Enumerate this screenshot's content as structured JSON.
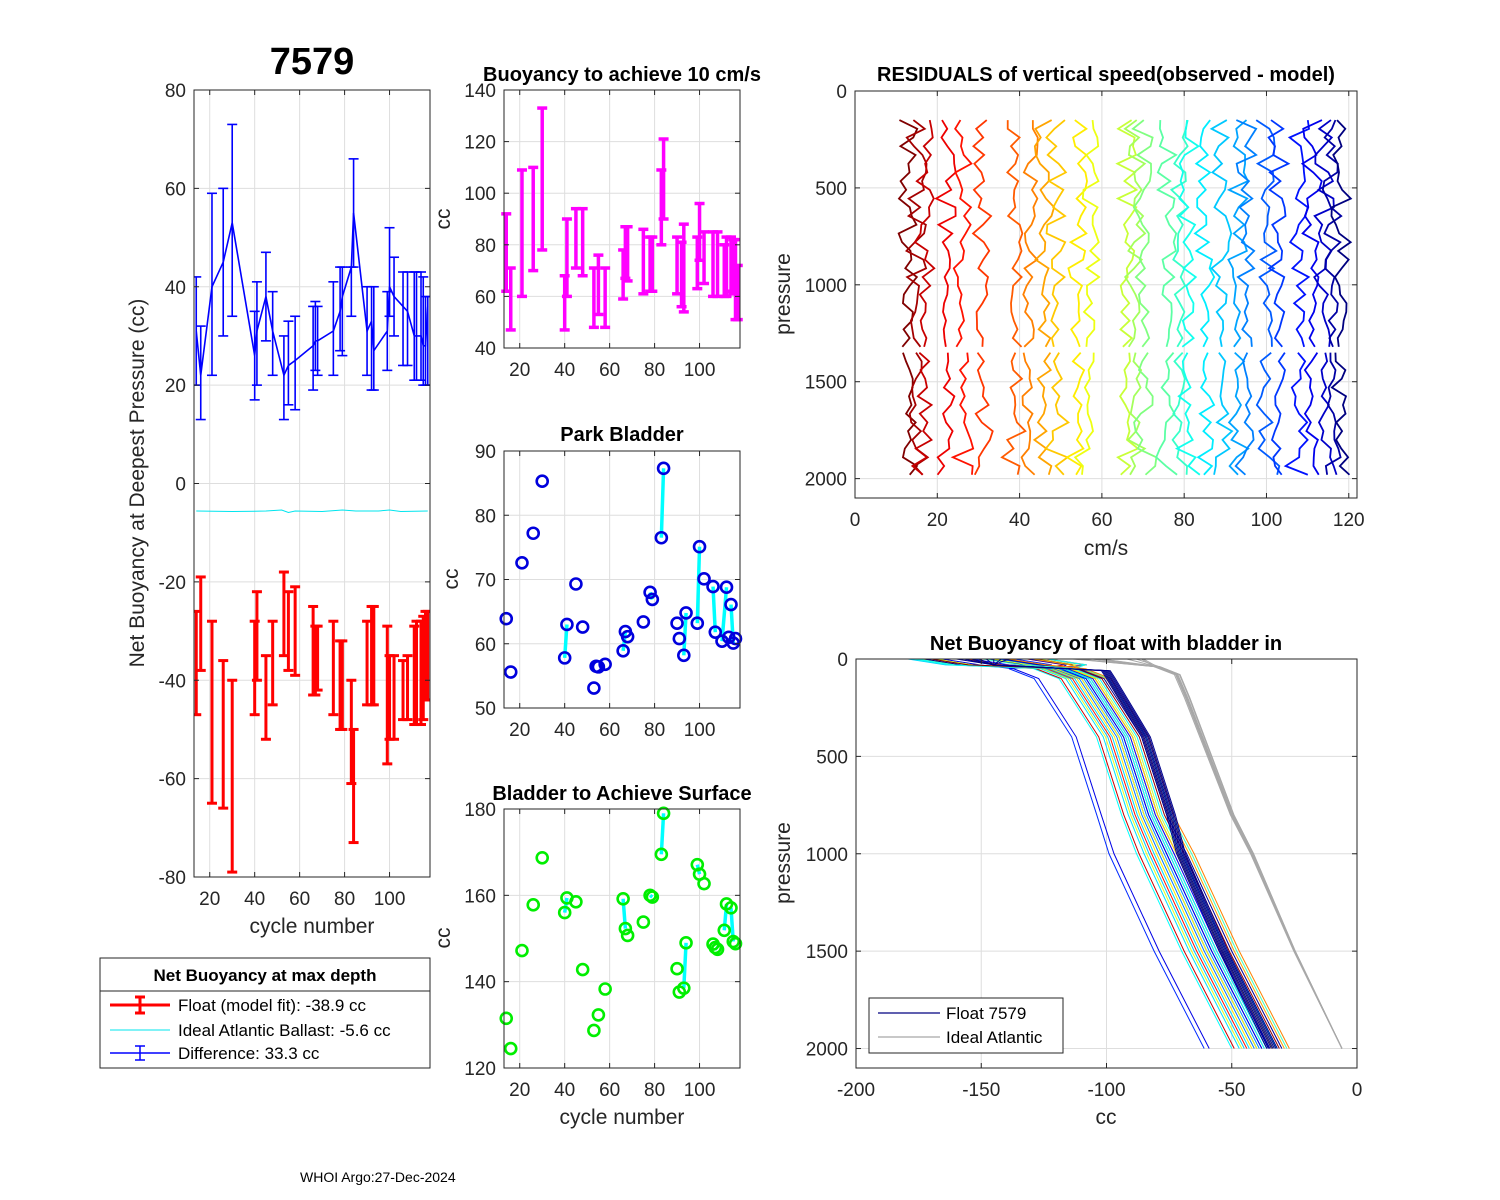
{
  "colors": {
    "float": "#ff0000",
    "ideal": "#00e5ee",
    "difference": "#0000ff",
    "buoy10": "#ff00ff",
    "park": "#0000dd",
    "surface": "#00ee00",
    "link": "#00ffff",
    "grid": "#dedede",
    "ideal_atlantic": "#a8a8a8",
    "float_legend": "#000080"
  },
  "footer": "WHOI Argo:27-Dec-2024",
  "chart_data": [
    {
      "id": "net_buoyancy",
      "type": "errorbar",
      "title": "7579",
      "xlabel": "cycle number",
      "ylabel": "Net Buoyancy at Deepest Pressure (cc)",
      "xlim": [
        13,
        118
      ],
      "ylim": [
        -80,
        80
      ],
      "xticks": [
        20,
        40,
        60,
        80,
        100
      ],
      "yticks": [
        -80,
        -60,
        -40,
        -20,
        0,
        20,
        40,
        60,
        80
      ],
      "grid": true,
      "legend": {
        "title": "Net Buoyancy at max depth",
        "entries": [
          "Float (model fit): -38.9 cc",
          "Ideal Atlantic Ballast:  -5.6 cc",
          "Difference:  33.3 cc"
        ],
        "placement": "below"
      },
      "series": [
        {
          "name": "Difference",
          "color": "difference",
          "line": true,
          "x": [
            14,
            16,
            21,
            26,
            30,
            40,
            41,
            45,
            48,
            53,
            55,
            58,
            66,
            67,
            68,
            75,
            78,
            79,
            83,
            84,
            90,
            92,
            93,
            99,
            100,
            102,
            106,
            108,
            111,
            112,
            114,
            115,
            116,
            117
          ],
          "y": [
            31,
            22,
            40,
            45,
            53,
            26,
            31,
            38,
            31,
            22,
            24,
            25,
            28,
            29,
            29,
            31,
            35,
            38,
            44,
            55,
            31,
            33,
            27,
            31,
            40,
            38,
            36,
            35,
            30,
            30,
            30,
            28,
            28,
            36
          ],
          "lo": [
            20,
            13,
            22,
            30,
            34,
            17,
            20,
            29,
            22,
            13,
            16,
            15,
            19,
            23,
            22,
            22,
            27,
            26,
            34,
            44,
            22,
            19,
            19,
            23,
            34,
            30,
            24,
            24,
            21,
            21,
            21,
            20,
            20,
            20
          ],
          "hi": [
            42,
            32,
            59,
            60,
            73,
            35,
            41,
            47,
            39,
            30,
            33,
            34,
            36,
            37,
            36,
            41,
            44,
            44,
            44,
            66,
            40,
            40,
            40,
            39,
            52,
            46,
            43,
            43,
            43,
            43,
            43,
            42,
            38,
            38
          ]
        },
        {
          "name": "Float (model fit)",
          "color": "float",
          "line": false,
          "x": [
            14,
            16,
            21,
            26,
            30,
            40,
            41,
            45,
            48,
            53,
            55,
            58,
            66,
            67,
            68,
            75,
            78,
            79,
            83,
            84,
            90,
            92,
            93,
            99,
            100,
            102,
            106,
            108,
            111,
            112,
            114,
            115,
            116,
            117
          ],
          "y": [
            -37,
            -28,
            -47,
            -51,
            -59,
            -38,
            -32,
            -43,
            -37,
            -28,
            -30,
            -30,
            -34,
            -36,
            -36,
            -38,
            -42,
            -42,
            -52,
            -61,
            -37,
            -35,
            -35,
            -44,
            -44,
            -44,
            -42,
            -40,
            -39,
            -40,
            -40,
            -41,
            -37,
            -35
          ],
          "lo": [
            -47,
            -38,
            -65,
            -66,
            -79,
            -47,
            -40,
            -52,
            -45,
            -35,
            -38,
            -39,
            -43,
            -43,
            -42,
            -47,
            -50,
            -50,
            -61,
            -73,
            -45,
            -45,
            -45,
            -57,
            -52,
            -52,
            -48,
            -48,
            -49,
            -49,
            -49,
            -48,
            -44,
            -44
          ],
          "hi": [
            -26,
            -19,
            -28,
            -36,
            -40,
            -28,
            -22,
            -35,
            -28,
            -18,
            -22,
            -21,
            -25,
            -29,
            -29,
            -28,
            -32,
            -32,
            -40,
            -50,
            -28,
            -25,
            -25,
            -29,
            -35,
            -35,
            -36,
            -35,
            -29,
            -28,
            -28,
            -27,
            -26,
            -26
          ]
        },
        {
          "name": "Ideal Atlantic Ballast",
          "color": "ideal",
          "line": true,
          "errors": false,
          "x": [
            14,
            30,
            45,
            52,
            55,
            58,
            70,
            79,
            85,
            95,
            100,
            105,
            117
          ],
          "y": [
            -5.6,
            -5.7,
            -5.6,
            -5.4,
            -5.9,
            -5.6,
            -5.7,
            -5.4,
            -5.6,
            -5.6,
            -5.4,
            -5.7,
            -5.6
          ]
        }
      ]
    },
    {
      "id": "buoyancy_10cms",
      "type": "errorbar",
      "title": "Buoyancy to achieve 10 cm/s",
      "xlabel": "",
      "ylabel": "cc",
      "xlim": [
        13,
        118
      ],
      "ylim": [
        40,
        140
      ],
      "xticks": [
        20,
        40,
        60,
        80,
        100
      ],
      "yticks": [
        40,
        60,
        80,
        100,
        120,
        140
      ],
      "grid": true,
      "series": [
        {
          "name": "Buoyancy",
          "color": "buoy10",
          "x": [
            14,
            16,
            21,
            26,
            30,
            40,
            41,
            45,
            48,
            53,
            55,
            58,
            66,
            67,
            68,
            75,
            78,
            79,
            83,
            84,
            90,
            92,
            93,
            99,
            100,
            102,
            106,
            108,
            111,
            112,
            114,
            115,
            116,
            117
          ],
          "lo": [
            62,
            47,
            60,
            70,
            78,
            47,
            60,
            71,
            68,
            48,
            53,
            48,
            59,
            67,
            66,
            61,
            62,
            62,
            80,
            90,
            61,
            56,
            54,
            63,
            74,
            65,
            60,
            60,
            60,
            60,
            62,
            61,
            51,
            51
          ],
          "hi": [
            92,
            71,
            109,
            110,
            133,
            68,
            90,
            94,
            94,
            71,
            76,
            71,
            78,
            87,
            87,
            86,
            83,
            83,
            109,
            121,
            83,
            81,
            88,
            83,
            96,
            85,
            85,
            85,
            80,
            83,
            83,
            82,
            82,
            72
          ]
        }
      ]
    },
    {
      "id": "park_bladder",
      "type": "scatter",
      "title": "Park Bladder",
      "xlabel": "",
      "ylabel": "cc",
      "xlim": [
        13,
        118
      ],
      "ylim": [
        50,
        90
      ],
      "xticks": [
        20,
        40,
        60,
        80,
        100
      ],
      "yticks": [
        50,
        60,
        70,
        80,
        90
      ],
      "grid": true,
      "points": {
        "x": [
          14,
          16,
          21,
          26,
          30,
          40,
          41,
          45,
          48,
          53,
          54,
          55,
          58,
          66,
          67,
          68,
          75,
          78,
          79,
          83,
          84,
          90,
          91,
          93,
          94,
          99,
          100,
          102,
          106,
          107,
          110,
          112,
          113,
          114,
          115,
          116
        ],
        "y": [
          63.9,
          55.6,
          72.6,
          77.2,
          85.3,
          57.8,
          63.0,
          69.3,
          62.6,
          53.1,
          56.5,
          56.4,
          56.8,
          58.9,
          61.9,
          61.1,
          63.4,
          68.0,
          66.9,
          76.5,
          87.3,
          63.2,
          60.8,
          58.2,
          64.8,
          63.2,
          75.1,
          70.1,
          68.9,
          61.8,
          60.4,
          68.8,
          61.0,
          66.1,
          60.1,
          60.8
        ]
      },
      "links": [
        [
          40,
          57.8,
          41,
          63.0
        ],
        [
          66,
          58.9,
          67,
          61.9
        ],
        [
          78,
          68.0,
          79,
          66.9
        ],
        [
          83,
          76.5,
          84,
          87.3
        ],
        [
          93,
          58.2,
          94,
          64.8
        ],
        [
          99,
          63.2,
          100,
          75.1
        ],
        [
          106,
          68.9,
          107,
          61.8
        ],
        [
          110,
          60.4,
          112,
          68.8
        ],
        [
          114,
          66.1,
          115,
          60.1
        ]
      ]
    },
    {
      "id": "bladder_surface",
      "type": "scatter",
      "title": "Bladder to Achieve Surface",
      "xlabel": "cycle number",
      "ylabel": "cc",
      "xlim": [
        13,
        118
      ],
      "ylim": [
        120,
        180
      ],
      "xticks": [
        20,
        40,
        60,
        80,
        100
      ],
      "yticks": [
        120,
        140,
        160,
        180
      ],
      "grid": true,
      "points": {
        "x": [
          14,
          16,
          21,
          26,
          30,
          40,
          41,
          45,
          48,
          53,
          55,
          58,
          66,
          67,
          68,
          75,
          78,
          79,
          83,
          84,
          90,
          91,
          93,
          94,
          99,
          100,
          102,
          106,
          107,
          108,
          111,
          112,
          114,
          115,
          116
        ],
        "y": [
          131.5,
          124.5,
          147.2,
          157.8,
          168.7,
          156.0,
          159.4,
          158.5,
          142.8,
          128.7,
          132.3,
          138.3,
          159.2,
          152.3,
          150.7,
          153.8,
          160.0,
          159.6,
          169.5,
          179.0,
          143.0,
          137.6,
          138.5,
          149.0,
          167.1,
          164.9,
          162.7,
          148.7,
          147.9,
          147.5,
          151.9,
          158.0,
          157.1,
          149.3,
          148.8
        ]
      },
      "links": [
        [
          40,
          156.0,
          41,
          159.4
        ],
        [
          66,
          159.2,
          67,
          152.3
        ],
        [
          78,
          160.0,
          79,
          159.6
        ],
        [
          83,
          169.5,
          84,
          179.0
        ],
        [
          93,
          138.5,
          94,
          149.0
        ],
        [
          99,
          167.1,
          100,
          164.9
        ],
        [
          107,
          147.9,
          108,
          147.5
        ],
        [
          111,
          151.9,
          112,
          158.0
        ],
        [
          114,
          157.1,
          115,
          149.3
        ]
      ]
    },
    {
      "id": "residuals",
      "type": "line",
      "title": "RESIDUALS of vertical speed(observed - model)",
      "xlabel": "cm/s",
      "ylabel": "pressure",
      "xlim": [
        0,
        122
      ],
      "ylim": [
        0,
        2100
      ],
      "y_reversed": true,
      "xticks": [
        0,
        20,
        40,
        60,
        80,
        100,
        120
      ],
      "yticks": [
        0,
        500,
        1000,
        1500,
        2000
      ],
      "grid": true,
      "profile_offsets_cms": [
        13,
        15,
        17,
        22,
        26,
        31,
        39,
        42,
        46,
        49,
        54,
        57,
        66,
        68,
        70,
        76,
        79,
        81,
        85,
        89,
        93,
        95,
        100,
        103,
        108,
        111,
        114,
        116,
        118
      ],
      "colormap": "jet",
      "segments": [
        [
          150,
          1320
        ],
        [
          1350,
          2000
        ]
      ]
    },
    {
      "id": "net_buoyancy_bladder_in",
      "type": "line",
      "title": "Net Buoyancy of float with bladder in",
      "xlabel": "cc",
      "ylabel": "pressure",
      "xlim": [
        -200,
        0
      ],
      "ylim": [
        0,
        2100
      ],
      "y_reversed": true,
      "xticks": [
        -200,
        -150,
        -100,
        -50,
        0
      ],
      "yticks": [
        0,
        500,
        1000,
        1500,
        2000
      ],
      "grid": true,
      "legend": {
        "entries": [
          "Float 7579",
          "Ideal Atlantic"
        ],
        "placement": "bottom-left"
      },
      "float_profiles_end_cc": [
        -61,
        -59,
        -50,
        -49,
        -47,
        -46,
        -45,
        -44,
        -43,
        -42,
        -41,
        -40,
        -40,
        -39,
        -38,
        -38,
        -37,
        -37,
        -36,
        -36,
        -35,
        -35,
        -34,
        -34,
        -33,
        -32,
        -31,
        -30,
        -29,
        -28,
        -27
      ],
      "ideal_profile": {
        "p": [
          0,
          40,
          80,
          200,
          400,
          600,
          800,
          1000,
          1500,
          2000
        ],
        "cc": [
          -100,
          -80,
          -72,
          -68,
          -62,
          -56,
          -50,
          -42,
          -25,
          -6
        ]
      }
    }
  ]
}
